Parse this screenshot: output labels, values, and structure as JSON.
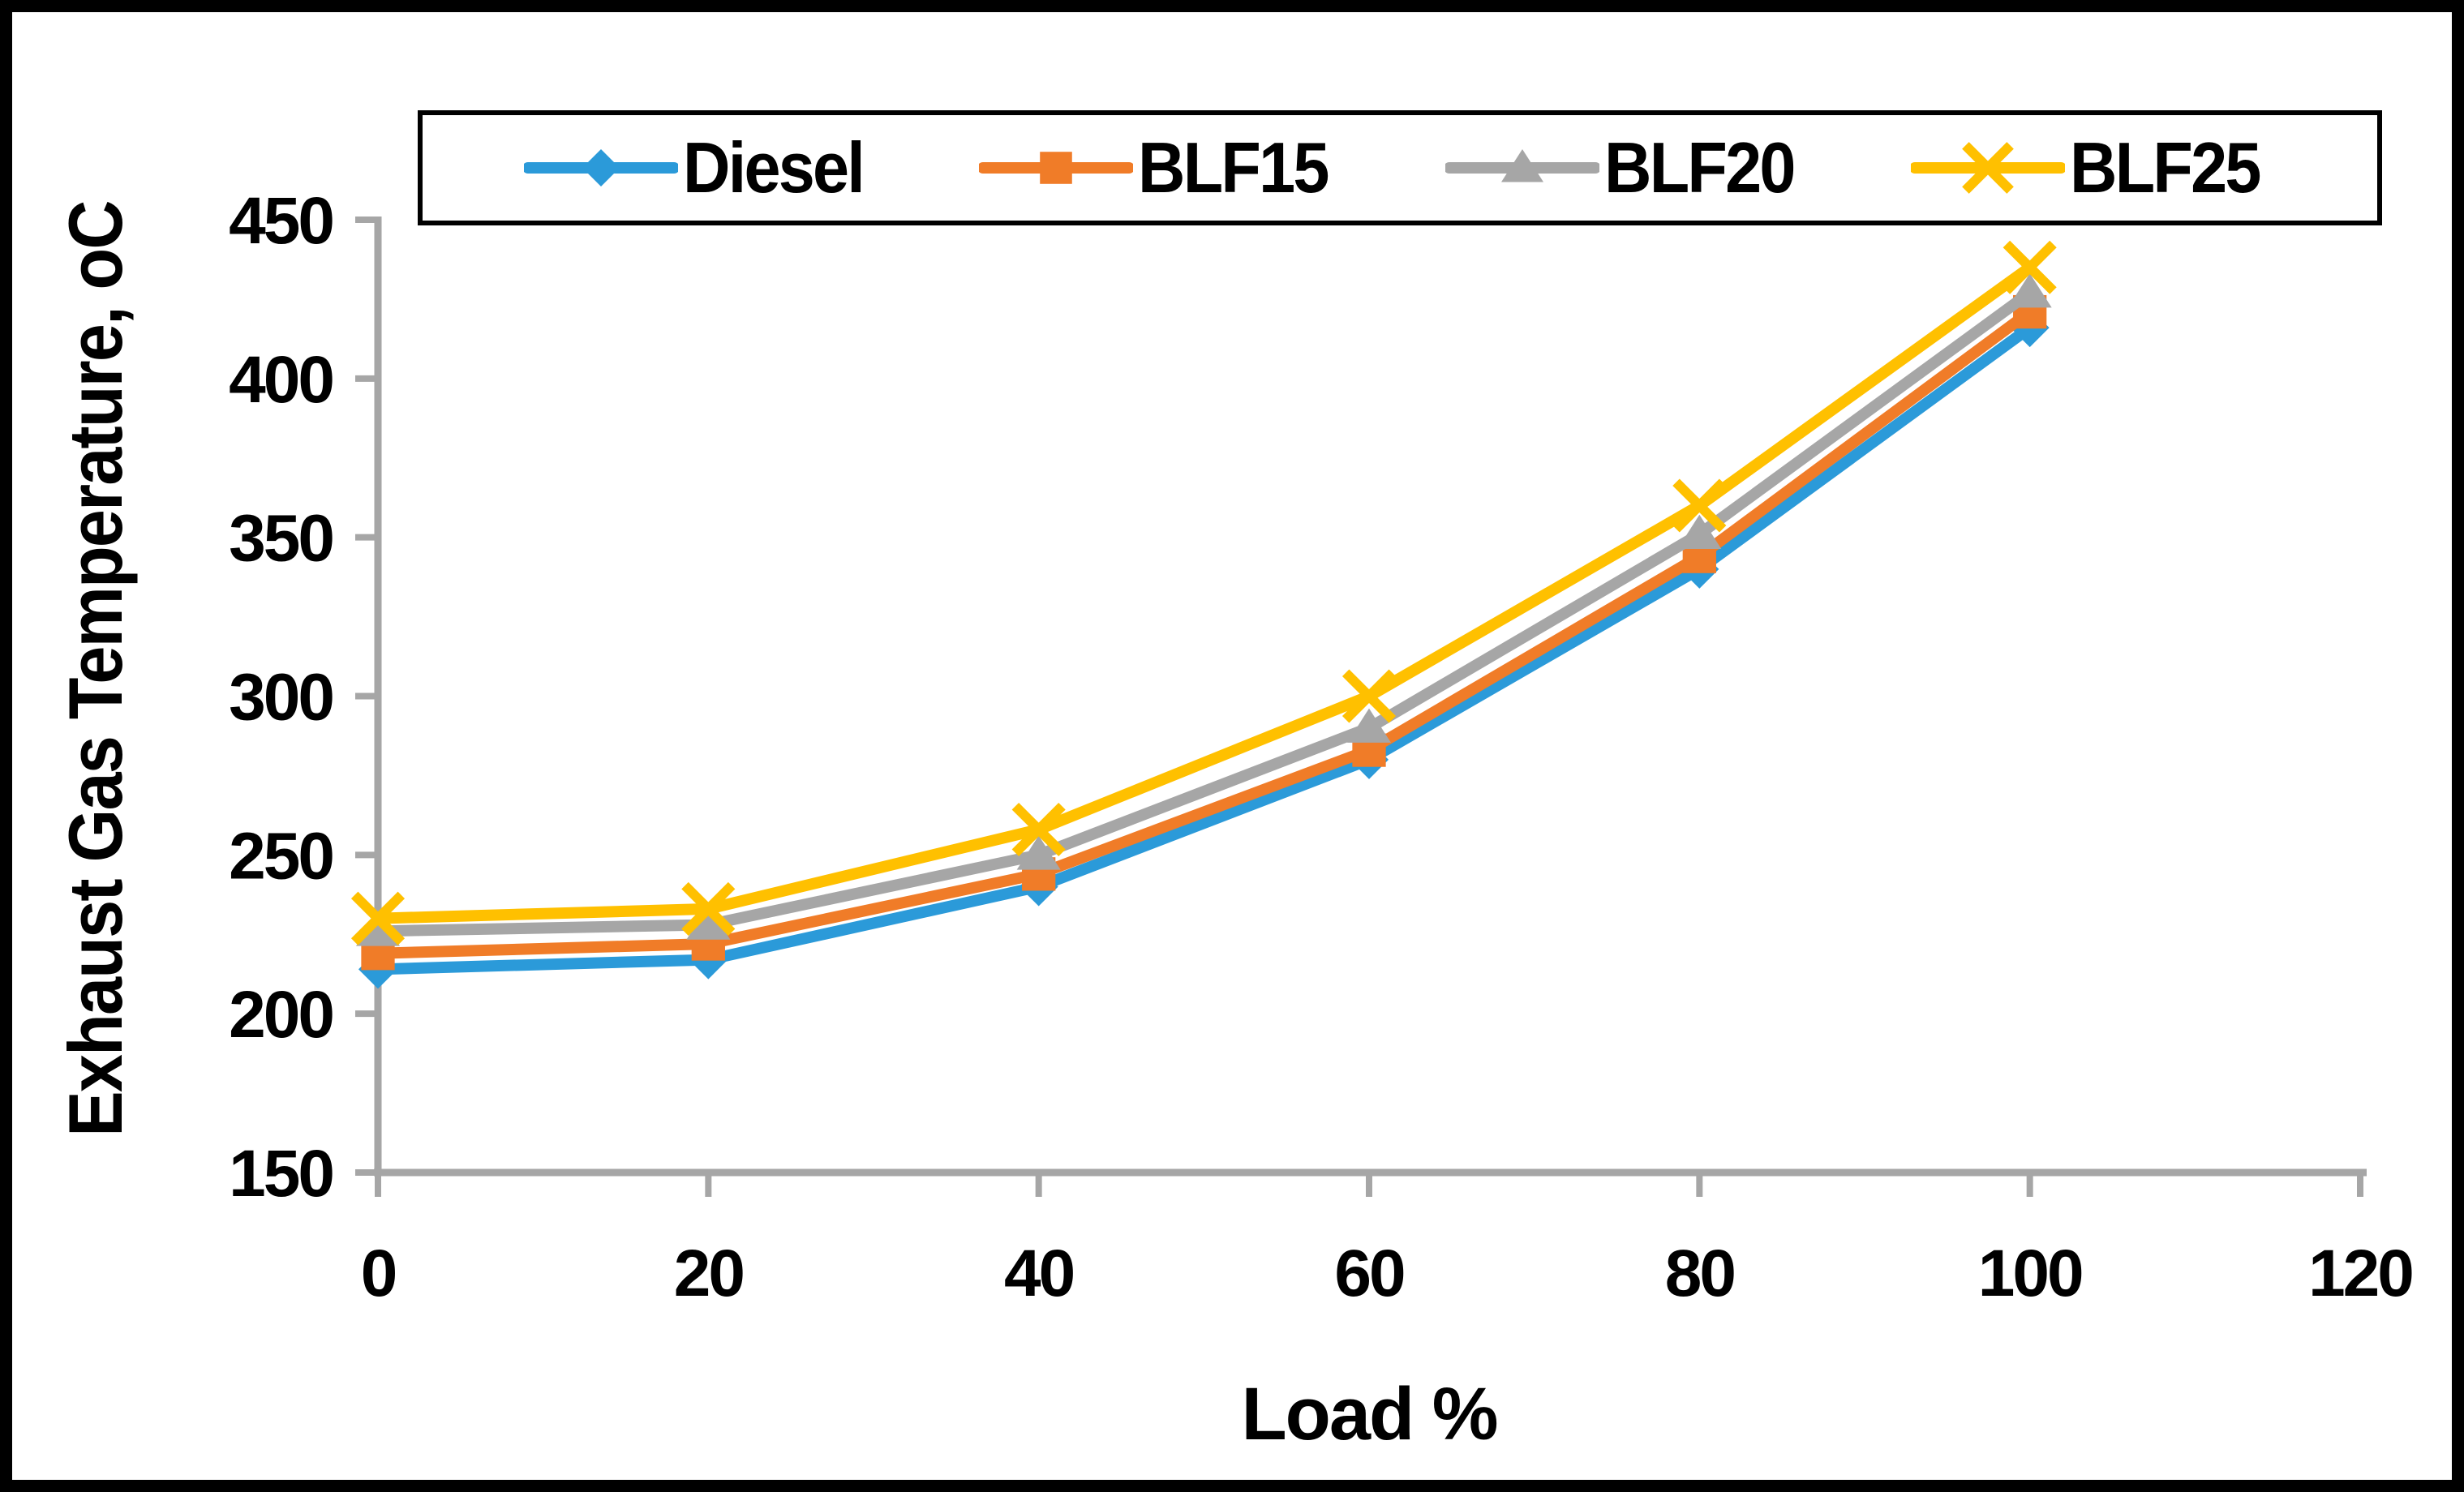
{
  "frame": {
    "border_color": "#000000",
    "background": "#FFFFFF"
  },
  "legend": {
    "border_color": "#000000",
    "position": "top"
  },
  "chart_data": {
    "type": "line",
    "title": "",
    "xlabel": "Load %",
    "ylabel": "Exhaust Gas Temperature, oC",
    "x": [
      0,
      20,
      40,
      60,
      80,
      100
    ],
    "xlim": [
      0,
      120
    ],
    "ylim": [
      150,
      450
    ],
    "x_ticks": [
      0,
      20,
      40,
      60,
      80,
      100,
      120
    ],
    "y_ticks": [
      150,
      200,
      250,
      300,
      350,
      400,
      450
    ],
    "grid": false,
    "legend_position": "top",
    "axis_color": "#A6A6A6",
    "text_color": "#000000",
    "series": [
      {
        "name": "Diesel",
        "color": "#2B9AD9",
        "marker": "diamond",
        "values": [
          214,
          217,
          240,
          280,
          340,
          416
        ]
      },
      {
        "name": "BLF15",
        "color": "#F07C28",
        "marker": "square",
        "values": [
          219,
          222,
          244,
          283,
          344,
          421
        ]
      },
      {
        "name": "BLF20",
        "color": "#A6A6A6",
        "marker": "triangle",
        "values": [
          226,
          228,
          250,
          290,
          351,
          427
        ]
      },
      {
        "name": "BLF25",
        "color": "#FFC000",
        "marker": "x",
        "values": [
          230,
          233,
          258,
          300,
          360,
          435
        ]
      }
    ]
  }
}
